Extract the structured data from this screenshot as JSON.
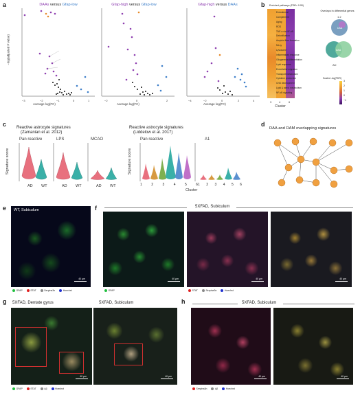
{
  "panel_letters": {
    "a": "a",
    "b": "b",
    "c": "c",
    "d": "d",
    "e": "e",
    "f": "f",
    "g": "g",
    "h": "h"
  },
  "panel_a": {
    "plot1_title": {
      "left": "DAAs",
      "mid": " versus ",
      "right": "Gfap-low"
    },
    "plot2_title": {
      "left": "Gfap-high",
      "mid": " versus ",
      "right": "Gfap-low"
    },
    "plot3_title": {
      "left": "Gfap-high",
      "mid": " versus ",
      "right": "DAAs"
    },
    "ylabel": "−log(adjusted P value)",
    "xlabel": "Average log(FC)",
    "plot1_xticks": [
      "−3",
      "−2",
      "−1",
      "0",
      "1"
    ],
    "plot2_xticks": [
      "−2",
      "0",
      "2"
    ],
    "plot3_xticks": [
      "−4",
      "−2",
      "0",
      "2",
      "4"
    ],
    "plot1_yticks": [
      "0",
      "50",
      "100",
      "150",
      "200",
      "250",
      "300"
    ],
    "plot2_yticks": [
      "0",
      "50",
      "100",
      "150",
      "200",
      "250"
    ],
    "plot3_yticks": [
      "0",
      "50",
      "100",
      "150",
      "200"
    ],
    "colors": {
      "purple": "#8e3fb0",
      "blue": "#3d7fc9",
      "orange": "#e88a2a"
    }
  },
  "panel_b": {
    "title": "Enriched pathways (FDR< 0.05)",
    "pathways": [
      "Endodermal",
      "Complement",
      "Aging",
      "ROS",
      "TNF-α via NF-κB",
      "Detoxification",
      "Amyloid fiber formation",
      "Mt-xy",
      "Lysosome",
      "Inflammatory response",
      "Gliogenesis/differentiation",
      "Lipid response",
      "Endothelial migration",
      "Transport/metabolism",
      "Cytokine production",
      "CNS development",
      "Lipid & sterol metabolism",
      "NF-κB signaling"
    ],
    "xticks": [
      "3",
      "4",
      "6"
    ],
    "xlabel": "Cluster",
    "venn_title": "Overlaps in differential genes",
    "venn_big": "DAA",
    "venn_top": "1 2",
    "venn_center": "DAA",
    "venn_bottom_label": "AD",
    "scale_title": "Scaled -log(FDR)",
    "scale_ticks": [
      "3",
      "2",
      "1",
      "0",
      "−1"
    ]
  },
  "panel_c": {
    "left_title1": "Reactive astrocyte signatures",
    "left_title2": "(Zamanian et al. 2012)",
    "right_title1": "Reactive astrocyte signatures",
    "right_title2": "(Liddelow et al. 2017)",
    "sub1": "Pan reactive",
    "sub2": "LPS",
    "sub3": "MCAO",
    "sub4": "Pan reactive",
    "sub5": "A1",
    "ylabel": "Signature score",
    "groups": [
      "AD",
      "WT"
    ],
    "clusters": [
      "1",
      "2",
      "3",
      "4",
      "5",
      "6"
    ],
    "xlabel": "Cluster",
    "yticks_l": [
      "0.6",
      "0.3",
      "0"
    ],
    "yticks_r": [
      "0.4",
      "0.2",
      "0",
      "−0.2"
    ]
  },
  "panel_d": {
    "title": "DAA and DAM overlapping signatures"
  },
  "panel_e": {
    "title": "WT, Subiculum",
    "legend": [
      {
        "label": "GFAP",
        "color": "#22c040"
      },
      {
        "label": "STAT",
        "color": "#e02020"
      },
      {
        "label": "Serpina3n",
        "color": "#888888"
      },
      {
        "label": "Hoechst",
        "color": "#2030d0"
      }
    ],
    "scale": "40 μm"
  },
  "panel_f": {
    "title": "5XFAD, Subiculum",
    "legend1": [
      {
        "label": "GFAP",
        "color": "#22c040"
      }
    ],
    "legend2": [
      {
        "label": "STAT",
        "color": "#e02020"
      },
      {
        "label": "Serpina3n",
        "color": "#888888"
      },
      {
        "label": "Hoechst",
        "color": "#2030d0"
      }
    ],
    "scale": "40 μm"
  },
  "panel_g": {
    "title1": "5XFAD, Dentate gyrus",
    "title2": "5XFAD, Subiculum",
    "legend": [
      {
        "label": "GFAP",
        "color": "#22c040"
      },
      {
        "label": "STAT",
        "color": "#e02020"
      },
      {
        "label": "Aβ",
        "color": "#888888"
      },
      {
        "label": "Hoechst",
        "color": "#2030d0"
      }
    ],
    "scale": "40 μm"
  },
  "panel_h": {
    "title": "5XFAD, Subiculum",
    "legend": [
      {
        "label": "Serpina3n",
        "color": "#e02020"
      },
      {
        "label": "Aβ",
        "color": "#888888"
      },
      {
        "label": "Hoechst",
        "color": "#2030d0"
      }
    ],
    "scale": "40 μm"
  }
}
